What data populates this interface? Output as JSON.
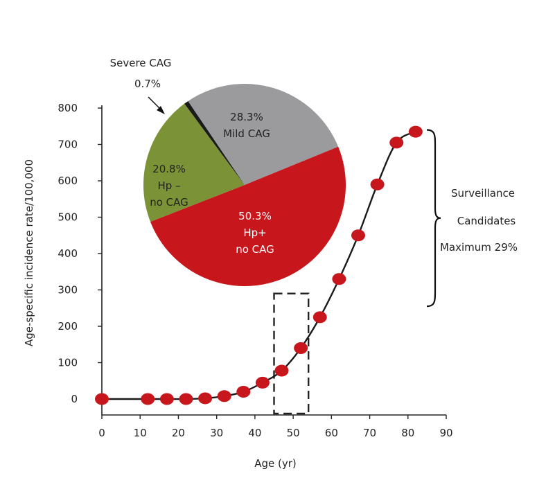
{
  "chart_data": [
    {
      "type": "line",
      "xlabel": "Age (yr)",
      "ylabel": "Age-specific incidence rate/100,000",
      "xlim": [
        0,
        90
      ],
      "ylim": [
        0,
        800
      ],
      "x_ticks": [
        "0",
        "10",
        "20",
        "30",
        "40",
        "50",
        "60",
        "70",
        "80",
        "90"
      ],
      "y_ticks": [
        "0",
        "100",
        "200",
        "300",
        "400",
        "500",
        "600",
        "700",
        "800"
      ],
      "grid": false,
      "series": [
        {
          "color": "#c8161d",
          "x": [
            0,
            12,
            17,
            22,
            27,
            32,
            37,
            42,
            47,
            52,
            57,
            62,
            67,
            72,
            77,
            82
          ],
          "y": [
            0,
            0,
            0,
            0,
            2,
            8,
            20,
            45,
            78,
            140,
            225,
            330,
            450,
            590,
            705,
            735
          ]
        }
      ],
      "highlight_box": {
        "x_range": [
          45,
          54
        ],
        "y_range": [
          -40,
          290
        ]
      },
      "annotation": {
        "y_range": [
          255,
          740
        ],
        "lines": [
          "Surveillance",
          "Candidates",
          "Maximum 29%"
        ]
      }
    },
    {
      "type": "pie",
      "slices": [
        {
          "value": 28.3,
          "color": "#9b9b9e",
          "text_color": "#222222",
          "lines": [
            "28.3%",
            "Mild CAG"
          ]
        },
        {
          "value": 50.3,
          "color": "#c8161d",
          "text_color": "#ffffff",
          "lines": [
            "50.3%",
            "Hp+",
            "no CAG"
          ]
        },
        {
          "value": 20.8,
          "color": "#7b9336",
          "text_color": "#222222",
          "lines": [
            "20.8%",
            "Hp –",
            "no CAG"
          ]
        },
        {
          "value": 0.7,
          "color": "#1a1a1a",
          "text_color": "#222222",
          "lines": []
        }
      ],
      "callout": {
        "lines": [
          "Severe CAG",
          "0.7%"
        ]
      }
    }
  ]
}
